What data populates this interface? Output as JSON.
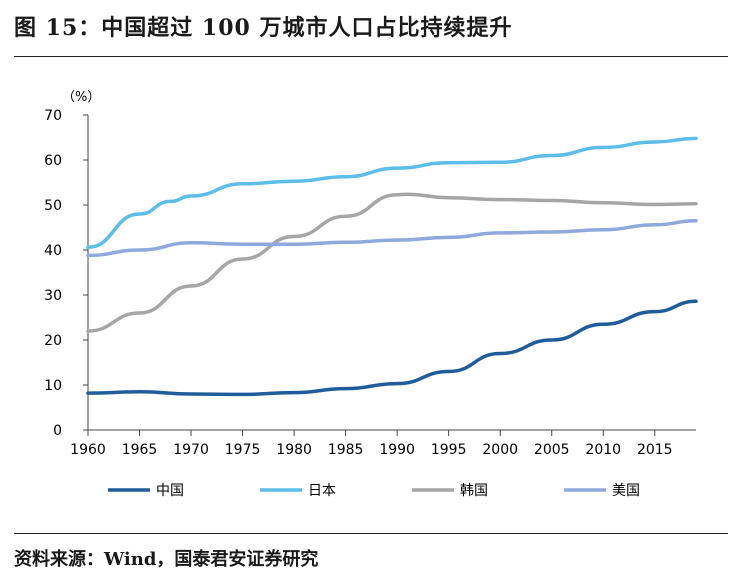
{
  "figure": {
    "title": "图 15：中国超过 100 万城市人口占比持续提升",
    "source": "资料来源：Wind，国泰君安证券研究"
  },
  "chart_data": {
    "type": "line",
    "title": "图 15：中国超过 100 万城市人口占比持续提升",
    "unit_label": "（%）",
    "xlabel": "",
    "ylabel": "",
    "xlim": [
      1960,
      2019
    ],
    "ylim": [
      0,
      70
    ],
    "x_ticks": [
      1960,
      1965,
      1970,
      1975,
      1980,
      1985,
      1990,
      1995,
      2000,
      2005,
      2010,
      2015
    ],
    "y_ticks": [
      0,
      10,
      20,
      30,
      40,
      50,
      60,
      70
    ],
    "grid": false,
    "legend_position": "bottom",
    "series": [
      {
        "name": "中国",
        "color": "#1f5c99",
        "x": [
          1960,
          1965,
          1970,
          1975,
          1980,
          1985,
          1990,
          1995,
          2000,
          2005,
          2010,
          2015,
          2019
        ],
        "y": [
          8.2,
          8.5,
          8.0,
          7.9,
          8.3,
          9.2,
          10.3,
          13.0,
          17.0,
          20.0,
          23.5,
          26.3,
          28.6
        ]
      },
      {
        "name": "日本",
        "color": "#5bbde8",
        "x": [
          1960,
          1965,
          1968,
          1970,
          1975,
          1980,
          1985,
          1990,
          1995,
          2000,
          2005,
          2010,
          2015,
          2019
        ],
        "y": [
          40.6,
          48.0,
          50.8,
          52.0,
          54.7,
          55.3,
          56.3,
          58.2,
          59.4,
          59.5,
          61.0,
          62.8,
          64.0,
          64.8
        ]
      },
      {
        "name": "韩国",
        "color": "#a6a6a6",
        "x": [
          1960,
          1965,
          1970,
          1975,
          1980,
          1985,
          1990,
          1991,
          1995,
          2000,
          2005,
          2010,
          2015,
          2019
        ],
        "y": [
          22.0,
          26.0,
          32.0,
          38.0,
          43.0,
          47.5,
          52.3,
          52.4,
          51.6,
          51.2,
          51.0,
          50.5,
          50.1,
          50.3
        ]
      },
      {
        "name": "美国",
        "color": "#8ea9db",
        "x": [
          1960,
          1965,
          1970,
          1975,
          1980,
          1985,
          1990,
          1995,
          2000,
          2005,
          2010,
          2015,
          2019
        ],
        "y": [
          38.8,
          40.0,
          41.6,
          41.3,
          41.3,
          41.7,
          42.2,
          42.8,
          43.8,
          44.0,
          44.5,
          45.6,
          46.5
        ]
      }
    ]
  }
}
